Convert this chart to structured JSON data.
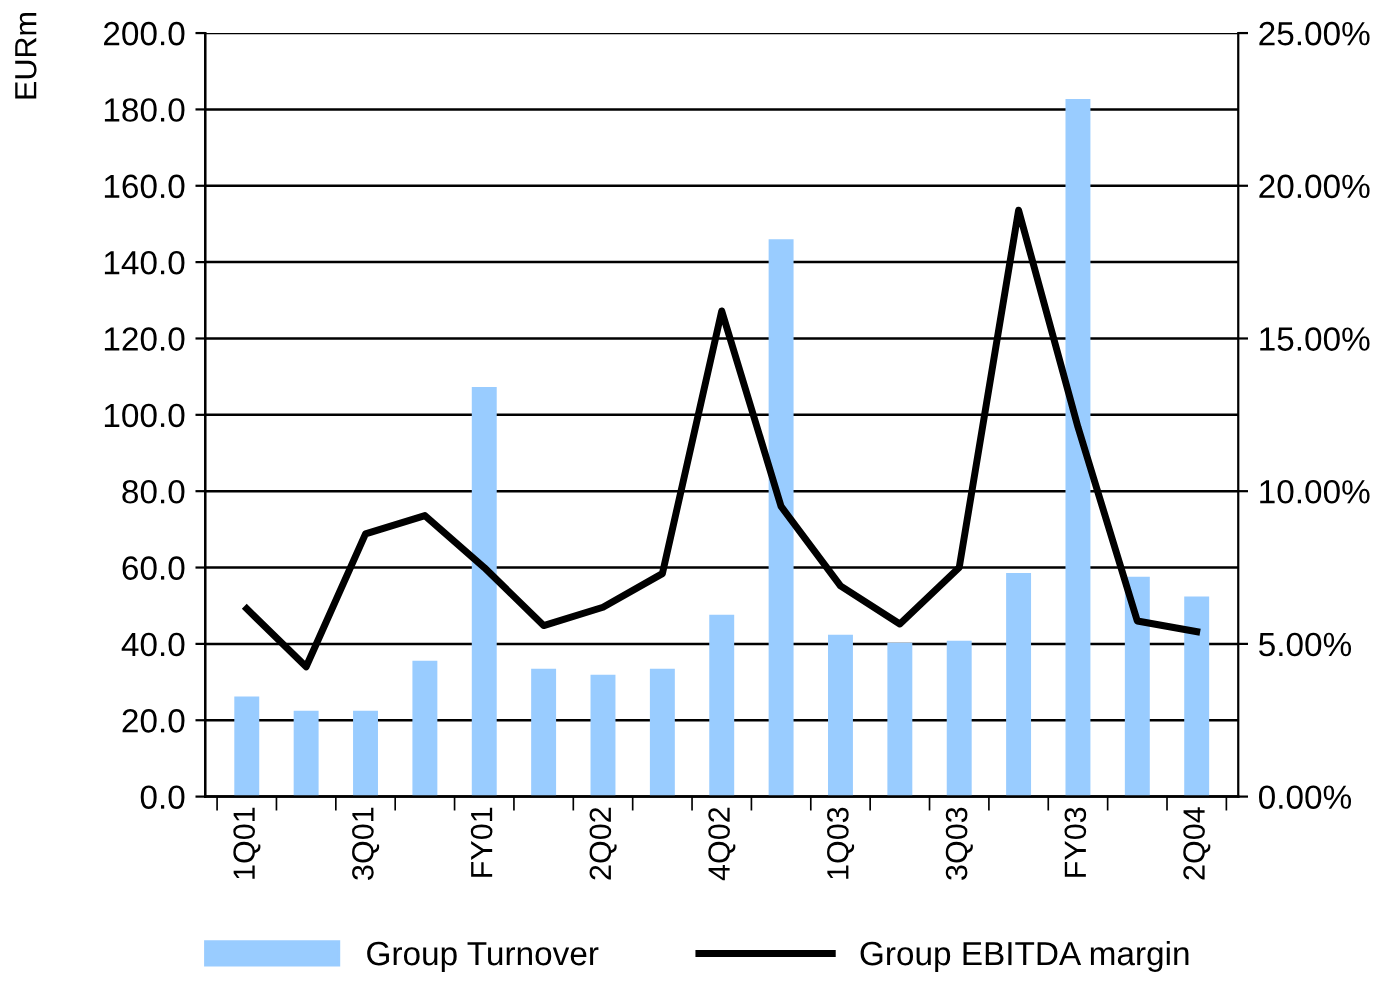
{
  "chart_data": {
    "type": "bar",
    "ylabel": "EURm",
    "categories": [
      "1Q01",
      null,
      "3Q01",
      null,
      "FY01",
      null,
      "2Q02",
      null,
      "4Q02",
      null,
      "1Q03",
      null,
      "3Q03",
      null,
      "FY03",
      null,
      "2Q04"
    ],
    "series": [
      {
        "name": "Group Turnover",
        "color": "#99ccff",
        "values": [
          26.2,
          22.5,
          22.5,
          35.6,
          107.3,
          33.5,
          31.9,
          33.5,
          47.6,
          146.0,
          42.4,
          40.3,
          40.8,
          58.6,
          182.7,
          57.6,
          52.4
        ]
      },
      {
        "name": "Group EBITDA margin",
        "type": "line",
        "axis": "y2",
        "color": "#000000",
        "values": [
          6.15,
          4.25,
          8.6,
          9.2,
          7.5,
          5.6,
          6.2,
          7.3,
          15.9,
          9.5,
          6.9,
          5.65,
          7.5,
          19.2,
          12.1,
          5.75,
          5.4
        ]
      }
    ],
    "ylim": [
      0,
      200
    ],
    "yticks": [
      {
        "value": 0,
        "label": "0.0"
      },
      {
        "value": 20,
        "label": "20.0"
      },
      {
        "value": 40,
        "label": "40.0"
      },
      {
        "value": 60,
        "label": "60.0"
      },
      {
        "value": 80,
        "label": "80.0"
      },
      {
        "value": 100,
        "label": "100.0"
      },
      {
        "value": 120,
        "label": "120.0"
      },
      {
        "value": 140,
        "label": "140.0"
      },
      {
        "value": 160,
        "label": "160.0"
      },
      {
        "value": 180,
        "label": "180.0"
      },
      {
        "value": 200,
        "label": "200.0"
      }
    ],
    "y2lim": [
      0,
      25
    ],
    "y2ticks": [
      {
        "value": 0,
        "label": "0.00%"
      },
      {
        "value": 5,
        "label": "5.00%"
      },
      {
        "value": 10,
        "label": "10.00%"
      },
      {
        "value": 15,
        "label": "15.00%"
      },
      {
        "value": 20,
        "label": "20.00%"
      },
      {
        "value": 25,
        "label": "25.00%"
      }
    ],
    "grid": "y",
    "legend": "bottom"
  }
}
